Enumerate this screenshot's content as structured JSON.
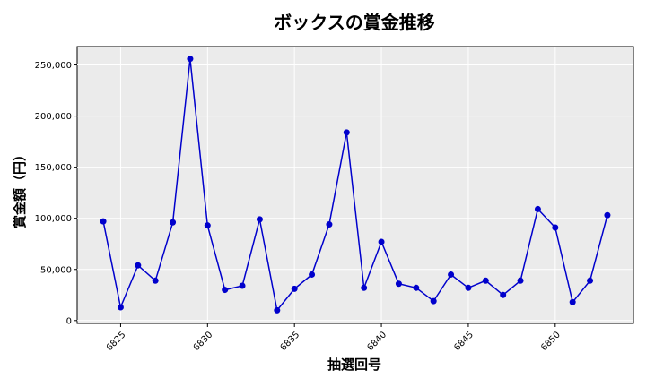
{
  "chart_data": {
    "type": "line",
    "title": "ボックスの賞金推移",
    "xlabel": "抽選回号",
    "ylabel": "賞金額（円）",
    "x": [
      6824,
      6825,
      6826,
      6827,
      6828,
      6829,
      6830,
      6831,
      6832,
      6833,
      6834,
      6835,
      6836,
      6837,
      6838,
      6839,
      6840,
      6841,
      6842,
      6843,
      6844,
      6845,
      6846,
      6847,
      6848,
      6849,
      6850,
      6851,
      6852,
      6853
    ],
    "series": [
      {
        "values": [
          97000,
          13000,
          54000,
          39000,
          96000,
          256000,
          93000,
          30000,
          34000,
          99000,
          10000,
          31000,
          45000,
          94000,
          184000,
          32000,
          77000,
          36000,
          32000,
          19000,
          45000,
          32000,
          39000,
          25000,
          39000,
          109000,
          91000,
          18000,
          39000,
          103000
        ],
        "color": "#0000cc"
      }
    ],
    "xlim": [
      6822.5,
      6854.5
    ],
    "ylim": [
      -2800,
      268000
    ],
    "xticks": [
      6825,
      6830,
      6835,
      6840,
      6845,
      6850
    ],
    "xtick_labels": [
      "6825",
      "6830",
      "6835",
      "6840",
      "6845",
      "6850"
    ],
    "yticks": [
      0,
      50000,
      100000,
      150000,
      200000,
      250000
    ],
    "ytick_labels": [
      "0",
      "50,000",
      "100,000",
      "150,000",
      "200,000",
      "250,000"
    ],
    "grid": true,
    "plot_background": "#ebebeb"
  }
}
